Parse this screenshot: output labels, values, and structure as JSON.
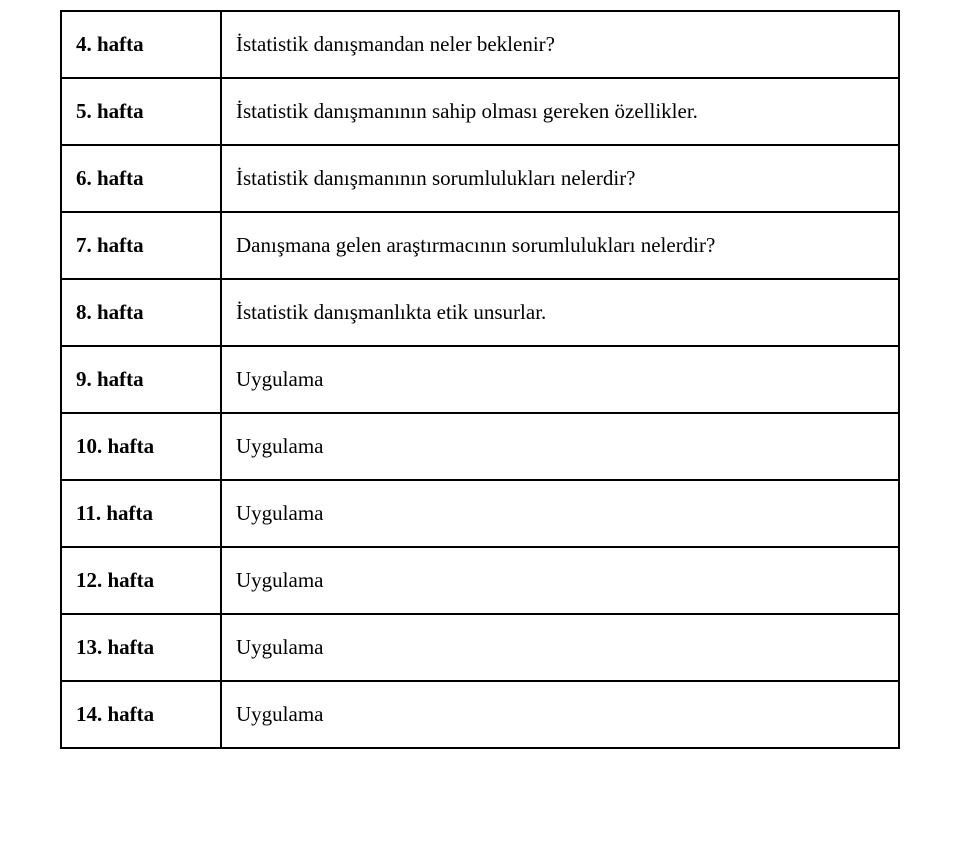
{
  "table": {
    "rows": [
      {
        "week": "4. hafta",
        "desc": "İstatistik danışmandan neler beklenir?"
      },
      {
        "week": "5. hafta",
        "desc": "İstatistik danışmanının sahip olması gereken özellikler."
      },
      {
        "week": "6. hafta",
        "desc": "İstatistik danışmanının sorumlulukları nelerdir?"
      },
      {
        "week": "7. hafta",
        "desc": "Danışmana gelen araştırmacının sorumlulukları nelerdir?"
      },
      {
        "week": "8. hafta",
        "desc": "İstatistik danışmanlıkta etik unsurlar."
      },
      {
        "week": "9. hafta",
        "desc": "Uygulama"
      },
      {
        "week": "10. hafta",
        "desc": "Uygulama"
      },
      {
        "week": "11. hafta",
        "desc": "Uygulama"
      },
      {
        "week": "12. hafta",
        "desc": "Uygulama"
      },
      {
        "week": "13. hafta",
        "desc": "Uygulama"
      },
      {
        "week": "14. hafta",
        "desc": "Uygulama"
      }
    ]
  }
}
